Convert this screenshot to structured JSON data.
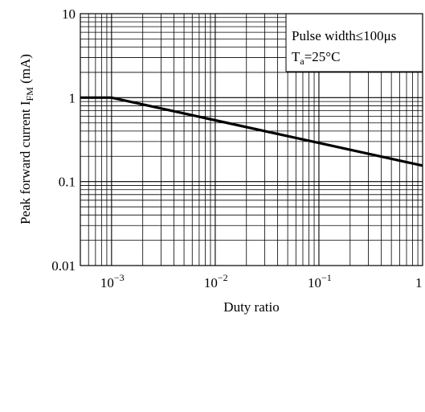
{
  "chart_data": {
    "type": "line",
    "xlabel": "Duty ratio",
    "ylabel": "Peak forward current I",
    "ylabel_sub": "FM",
    "ylabel_unit": " (mA)",
    "x_scale": "log",
    "y_scale": "log",
    "xlim": [
      0.0005,
      1
    ],
    "ylim": [
      0.01,
      10
    ],
    "grid": true,
    "x_ticks": [
      {
        "value": 0.001,
        "base": "10",
        "exp": "−3"
      },
      {
        "value": 0.01,
        "base": "10",
        "exp": "−2"
      },
      {
        "value": 0.1,
        "base": "10",
        "exp": "−1"
      },
      {
        "value": 1,
        "base": "1",
        "exp": ""
      }
    ],
    "y_ticks": [
      {
        "value": 10,
        "label": "10"
      },
      {
        "value": 1,
        "label": "1"
      },
      {
        "value": 0.1,
        "label": "0.1"
      },
      {
        "value": 0.01,
        "label": "0.01"
      }
    ],
    "series": [
      {
        "points": [
          [
            0.0005,
            1
          ],
          [
            0.001,
            1
          ],
          [
            1,
            0.155
          ]
        ]
      }
    ],
    "annotation": {
      "line1": "Pulse width≤100μs",
      "line2_main": "T",
      "line2_sub": "a",
      "line2_rest": "=25°C"
    }
  }
}
